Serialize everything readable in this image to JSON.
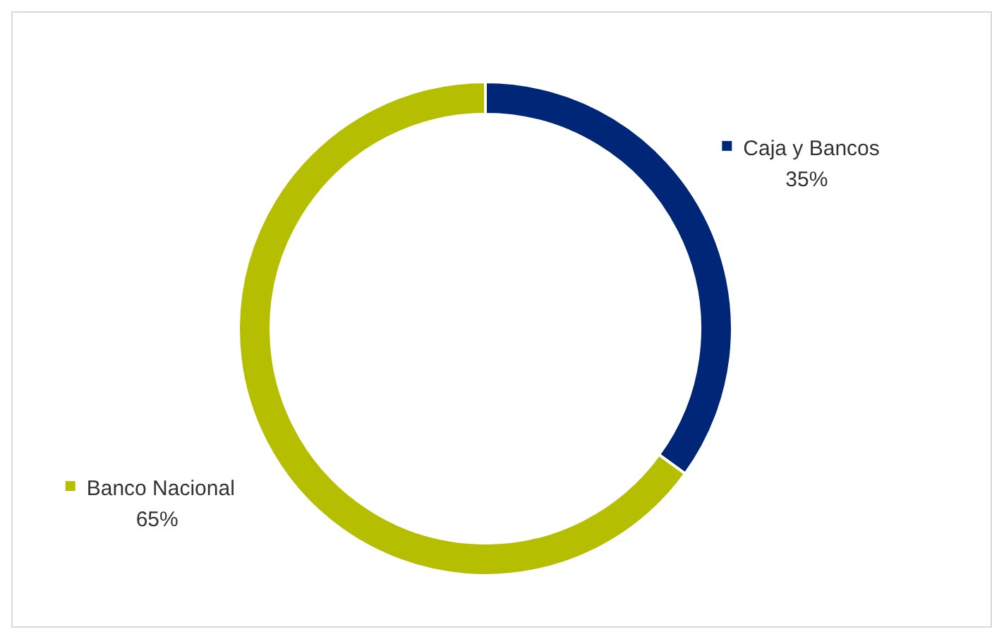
{
  "chart_data": {
    "type": "donut",
    "categories": [
      "Caja y Bancos",
      "Banco Nacional"
    ],
    "values": [
      35,
      65
    ],
    "colors": [
      "#002677",
      "#b5bf00"
    ],
    "value_labels": [
      "35%",
      "65%"
    ],
    "legend": "right"
  }
}
